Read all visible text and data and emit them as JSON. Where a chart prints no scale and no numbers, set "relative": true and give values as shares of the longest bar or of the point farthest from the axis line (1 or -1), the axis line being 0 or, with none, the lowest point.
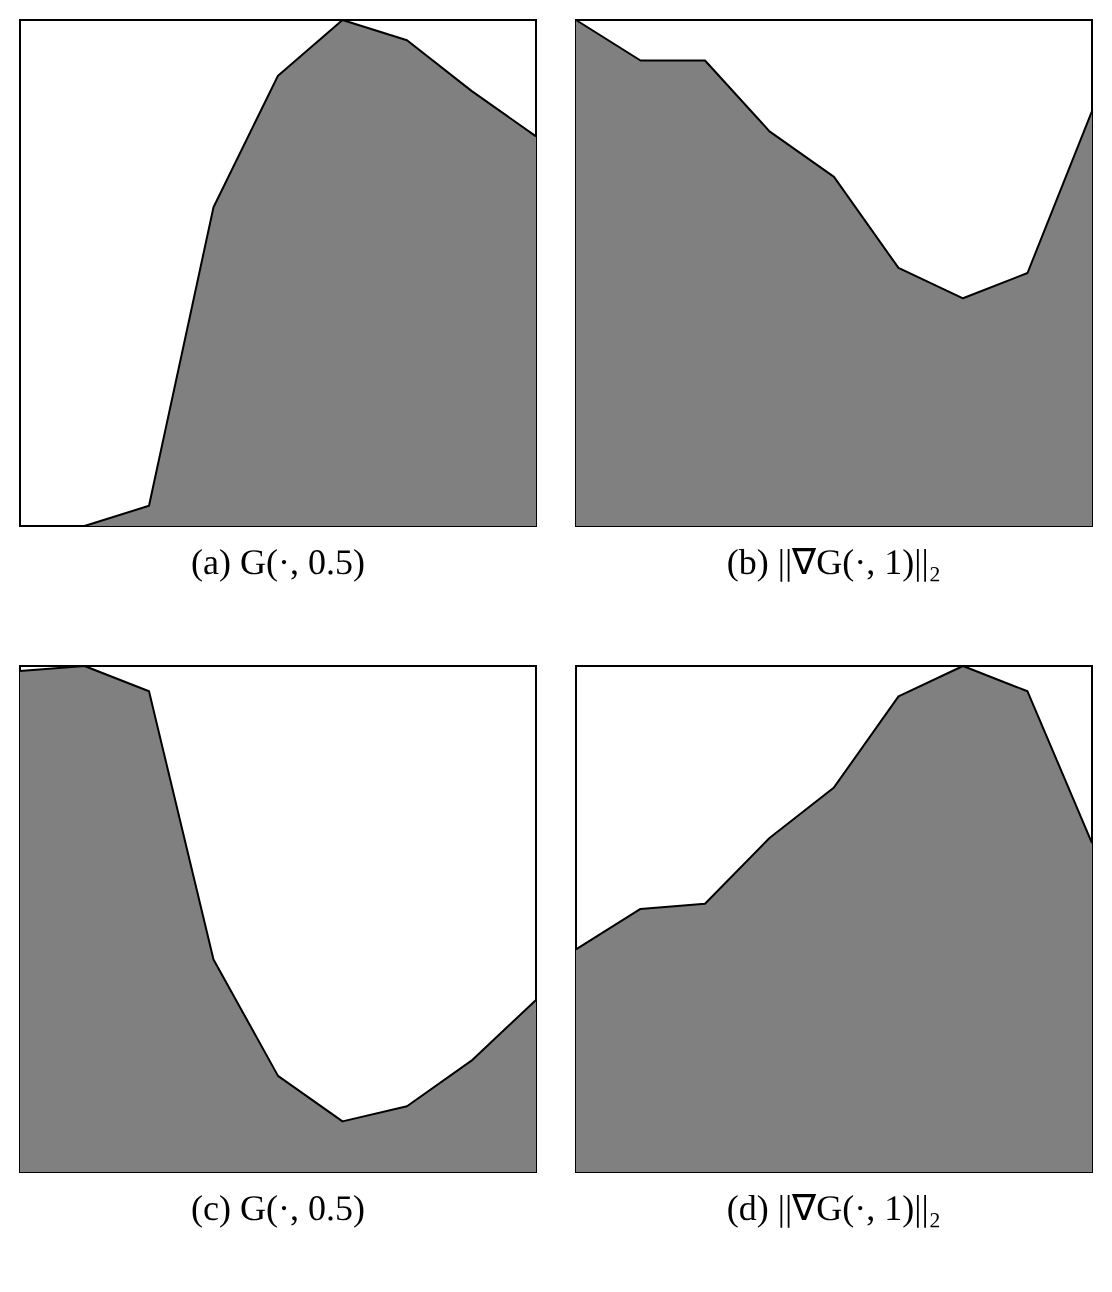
{
  "chart_data": [
    {
      "type": "area",
      "title": "(a) G(·, 0.5)",
      "relative": true,
      "categories": [
        null,
        null,
        null,
        null,
        null,
        null,
        null,
        null,
        null
      ],
      "values": [
        0,
        0,
        0.04,
        0.63,
        0.89,
        1,
        0.96,
        0.86,
        0.77
      ],
      "color": "#808080"
    },
    {
      "type": "area",
      "title": "(b) ||∇G(·, 1)||₂",
      "relative": true,
      "categories": [
        null,
        null,
        null,
        null,
        null,
        null,
        null,
        null,
        null
      ],
      "values": [
        1,
        0.92,
        0.92,
        0.78,
        0.69,
        0.51,
        0.45,
        0.5,
        0.82
      ],
      "color": "#808080"
    },
    {
      "type": "area",
      "title": "(c) G(·, 0.5)",
      "relative": true,
      "categories": [
        null,
        null,
        null,
        null,
        null,
        null,
        null,
        null,
        null
      ],
      "values": [
        0.99,
        1,
        0.95,
        0.42,
        0.19,
        0.1,
        0.13,
        0.22,
        0.34
      ],
      "color": "#808080"
    },
    {
      "type": "area",
      "title": "(d) ||∇G(·, 1)||₂",
      "relative": true,
      "categories": [
        null,
        null,
        null,
        null,
        null,
        null,
        null,
        null,
        null
      ],
      "values": [
        0.44,
        0.52,
        0.53,
        0.66,
        0.76,
        0.94,
        1,
        0.95,
        0.65
      ],
      "color": "#808080"
    }
  ]
}
